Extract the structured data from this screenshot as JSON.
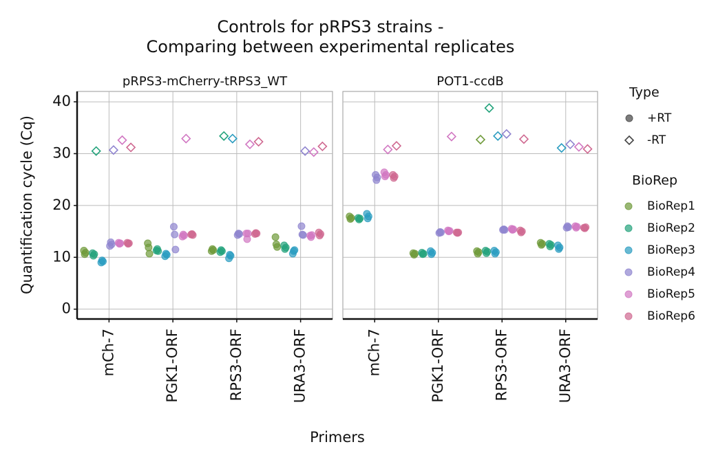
{
  "title": "Controls for pRPS3 strains -",
  "title_line2": "Comparing between experimental replicates",
  "xlabel": "Primers",
  "ylabel": "Quantification cycle (Cq)",
  "legend": {
    "type_title": "Type",
    "types": [
      {
        "label": "+RT",
        "shape": "circle"
      },
      {
        "label": "-RT",
        "shape": "diamond"
      }
    ],
    "rep_title": "BioRep",
    "reps": [
      {
        "name": "BioRep1",
        "color": "#6f9a3a"
      },
      {
        "name": "BioRep2",
        "color": "#24a37c"
      },
      {
        "name": "BioRep3",
        "color": "#2a9cc0"
      },
      {
        "name": "BioRep4",
        "color": "#8f84cf"
      },
      {
        "name": "BioRep5",
        "color": "#d177c2"
      },
      {
        "name": "BioRep6",
        "color": "#cf6890"
      }
    ]
  },
  "chart_data": [
    {
      "type": "scatter",
      "title": "pRPS3-mCherry-tRPS3_WT",
      "categories": [
        "mCh-7",
        "PGK1-ORF",
        "RPS3-ORF",
        "URA3-ORF"
      ],
      "ylim": [
        -1.9,
        42
      ],
      "yticks": [
        0,
        10,
        20,
        30,
        40
      ],
      "grid": true,
      "plus_rt": [
        [
          [
            11.3,
            10.6,
            10.9
          ],
          [
            10.8,
            10.3,
            10.6
          ],
          [
            9.0,
            9.4,
            9.2
          ],
          [
            12.2,
            12.9,
            12.5
          ],
          [
            12.8,
            12.6,
            12.7
          ],
          [
            12.8,
            12.6,
            12.7
          ]
        ],
        [
          [
            12.7,
            11.9,
            10.7
          ],
          [
            11.3,
            11.6,
            11.2
          ],
          [
            10.2,
            10.7,
            10.5
          ],
          [
            15.9,
            14.4,
            11.5
          ],
          [
            14.0,
            14.4,
            14.2
          ],
          [
            14.4,
            14.5,
            14.3
          ]
        ],
        [
          [
            11.2,
            11.6,
            11.4
          ],
          [
            11.0,
            11.4,
            11.2
          ],
          [
            9.8,
            10.5,
            10.3
          ],
          [
            14.3,
            14.6,
            14.5
          ],
          [
            14.6,
            13.5,
            14.6
          ],
          [
            14.5,
            14.7,
            14.6
          ]
        ],
        [
          [
            13.9,
            12.5,
            12.0
          ],
          [
            12.3,
            11.6,
            11.9
          ],
          [
            10.7,
            11.2,
            11.4
          ],
          [
            16.0,
            14.4,
            14.3
          ],
          [
            14.2,
            13.9,
            14.3
          ],
          [
            14.8,
            14.2,
            14.5
          ]
        ]
      ],
      "minus_rt": [
        [
          null,
          30.5,
          null,
          30.7,
          32.6,
          31.2
        ],
        [
          null,
          null,
          null,
          null,
          32.9,
          null
        ],
        [
          null,
          33.4,
          32.9,
          null,
          31.8,
          32.3
        ],
        [
          null,
          null,
          null,
          30.5,
          30.3,
          31.4
        ]
      ]
    },
    {
      "type": "scatter",
      "title": "POT1-ccdB",
      "categories": [
        "mCh-7",
        "PGK1-ORF",
        "RPS3-ORF",
        "URA3-ORF"
      ],
      "ylim": [
        -1.9,
        42
      ],
      "yticks": [
        0,
        10,
        20,
        30,
        40
      ],
      "grid": true,
      "plus_rt": [
        [
          [
            17.9,
            17.4,
            17.6
          ],
          [
            17.6,
            17.3,
            17.5
          ],
          [
            18.4,
            17.5,
            17.9
          ],
          [
            25.9,
            24.9,
            25.4
          ],
          [
            26.4,
            25.6,
            25.9
          ],
          [
            25.9,
            25.3,
            25.6
          ]
        ],
        [
          [
            10.8,
            10.5,
            10.7
          ],
          [
            10.9,
            10.6,
            10.7
          ],
          [
            11.2,
            10.6,
            10.9
          ],
          [
            14.7,
            14.9,
            14.8
          ],
          [
            15.2,
            15.0,
            15.1
          ],
          [
            14.8,
            14.7,
            14.8
          ]
        ],
        [
          [
            11.2,
            10.7,
            11.0
          ],
          [
            11.3,
            10.8,
            11.1
          ],
          [
            11.3,
            10.7,
            11.0
          ],
          [
            15.3,
            15.4,
            15.3
          ],
          [
            15.5,
            15.3,
            15.4
          ],
          [
            15.2,
            14.8,
            15.0
          ]
        ],
        [
          [
            12.8,
            12.4,
            12.6
          ],
          [
            12.6,
            12.1,
            12.4
          ],
          [
            12.3,
            11.6,
            11.9
          ],
          [
            15.7,
            16.0,
            15.8
          ],
          [
            16.0,
            15.7,
            15.9
          ],
          [
            15.7,
            15.6,
            15.8
          ]
        ]
      ],
      "minus_rt": [
        [
          null,
          null,
          null,
          null,
          30.8,
          31.5
        ],
        [
          null,
          null,
          null,
          null,
          33.3,
          null
        ],
        [
          32.7,
          38.8,
          33.4,
          33.8,
          null,
          32.8
        ],
        [
          null,
          null,
          31.1,
          31.8,
          31.3,
          30.9
        ]
      ]
    }
  ]
}
